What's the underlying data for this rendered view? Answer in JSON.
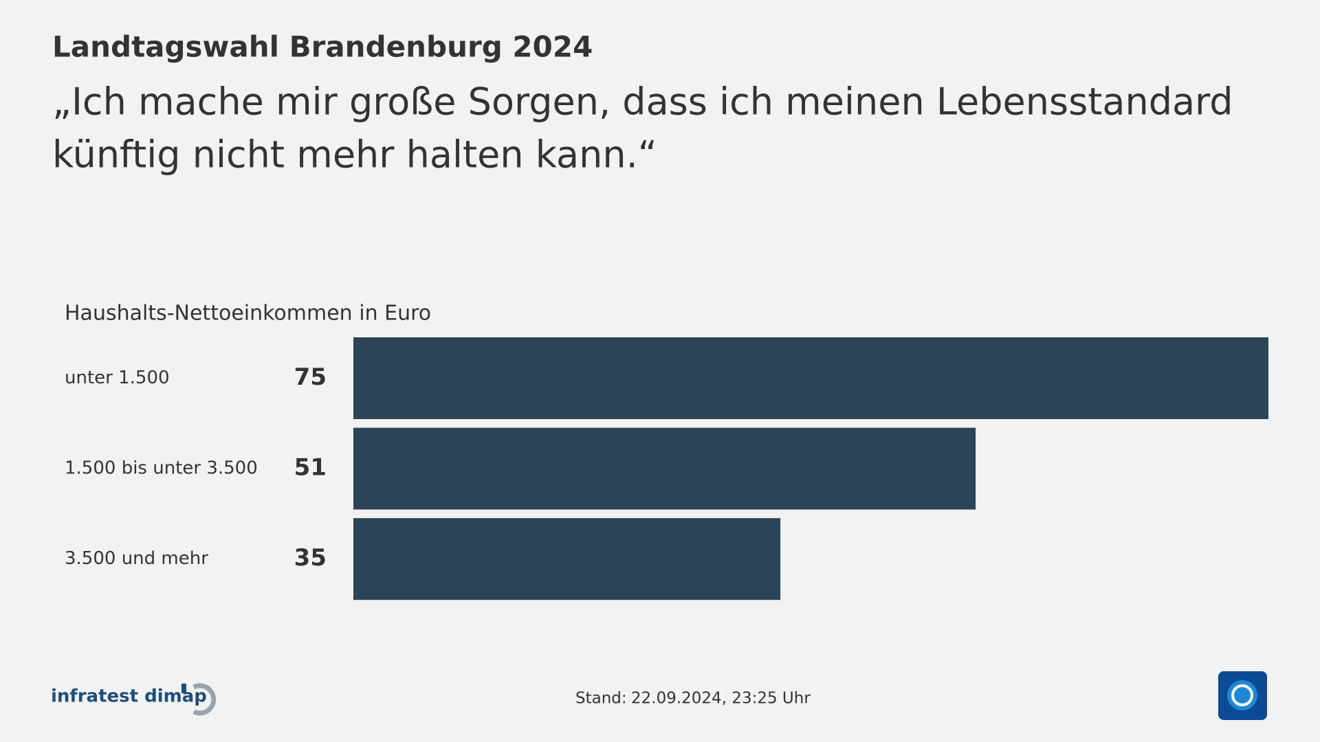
{
  "header": {
    "title": "Landtagswahl Brandenburg 2024",
    "subtitle_lines": [
      "„Ich mache mir große Sorgen, dass ich meinen Lebensstandard",
      "künftig nicht mehr halten kann.“"
    ]
  },
  "chart_data": {
    "type": "bar",
    "orientation": "horizontal",
    "axis_label": "Haushalts-Nettoeinkommen in Euro",
    "categories": [
      "unter 1.500",
      "1.500 bis unter 3.500",
      "3.500 und mehr"
    ],
    "values": [
      75,
      51,
      35
    ],
    "color": "#2b4457"
  },
  "footer": {
    "source": "infratest dimap",
    "stand_label": "Stand:",
    "stand_date": "22.09.2024, 23:25 Uhr"
  }
}
